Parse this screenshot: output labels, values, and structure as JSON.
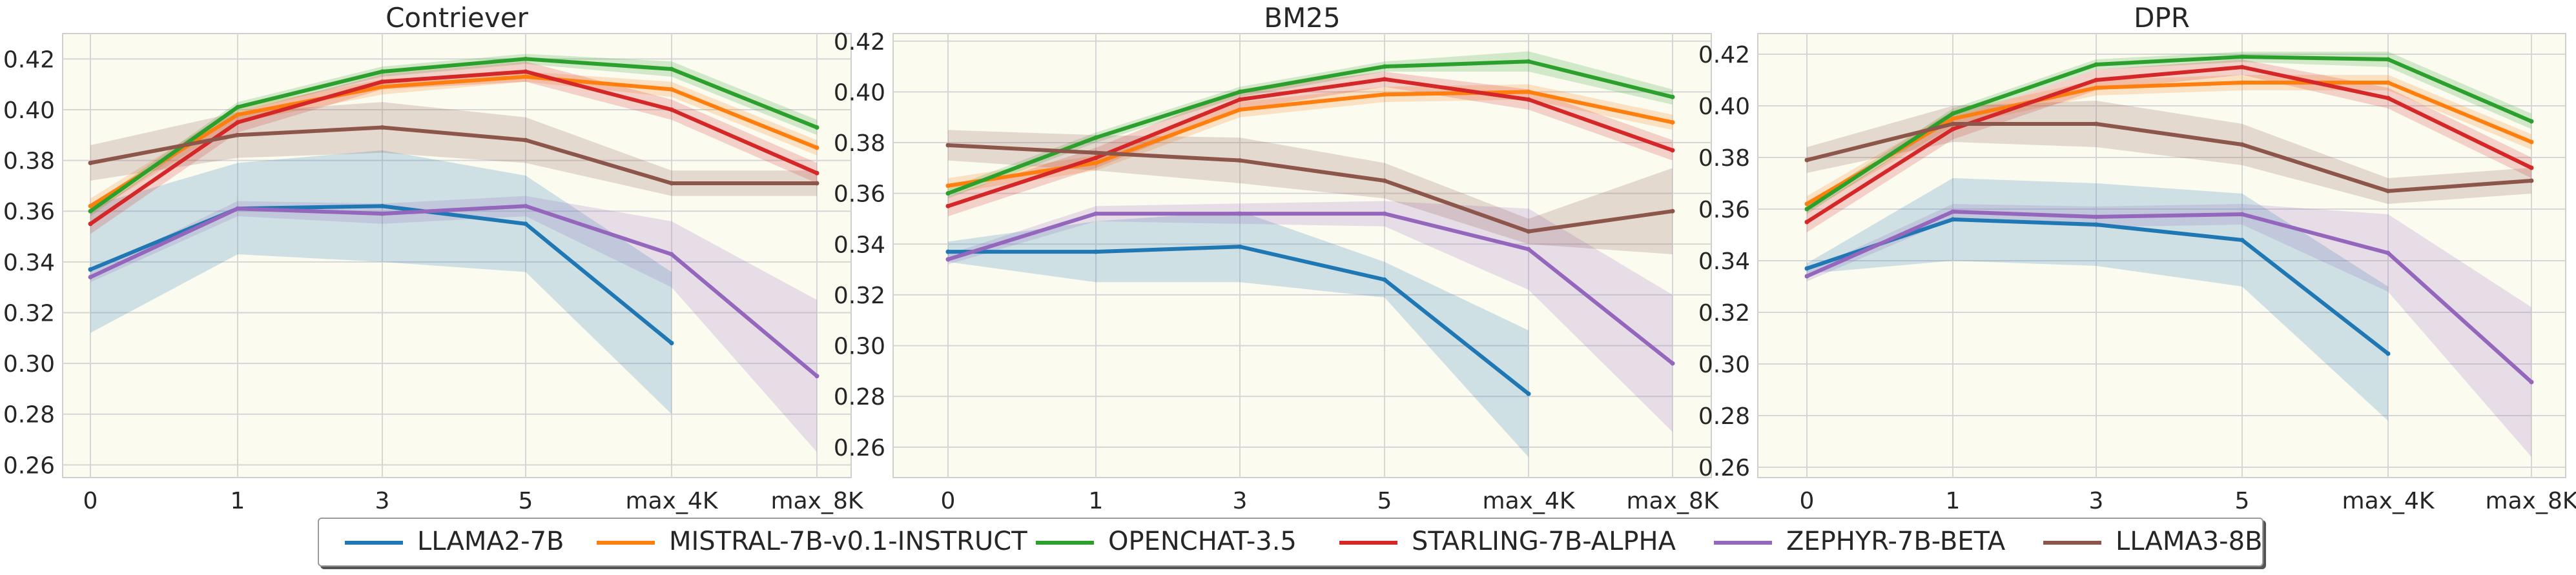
{
  "chart_data": [
    {
      "type": "line",
      "title": "Contriever",
      "categories": [
        "0",
        "1",
        "3",
        "5",
        "max_4K",
        "max_8K"
      ],
      "ylim": [
        0.255,
        0.43
      ],
      "yticks": [
        "0.26",
        "0.28",
        "0.30",
        "0.32",
        "0.34",
        "0.36",
        "0.38",
        "0.40",
        "0.42"
      ],
      "grid": true,
      "series": [
        {
          "name": "LLAMA2-7B",
          "values": [
            0.337,
            0.361,
            0.362,
            0.355,
            0.308,
            null
          ],
          "band": [
            0.025,
            0.018,
            0.022,
            0.019,
            0.028,
            null
          ]
        },
        {
          "name": "MISTRAL-7B-v0.1-INSTRUCT",
          "values": [
            0.362,
            0.398,
            0.409,
            0.413,
            0.408,
            0.385
          ],
          "band": [
            0.003,
            0.003,
            0.003,
            0.002,
            0.003,
            0.003
          ]
        },
        {
          "name": "OPENCHAT-3.5",
          "values": [
            0.36,
            0.401,
            0.415,
            0.42,
            0.416,
            0.393
          ],
          "band": [
            0.002,
            0.002,
            0.002,
            0.002,
            0.003,
            0.003
          ]
        },
        {
          "name": "STARLING-7B-ALPHA",
          "values": [
            0.355,
            0.395,
            0.411,
            0.415,
            0.4,
            0.375
          ],
          "band": [
            0.004,
            0.004,
            0.003,
            0.004,
            0.004,
            0.004
          ]
        },
        {
          "name": "ZEPHYR-7B-BETA",
          "values": [
            0.334,
            0.361,
            0.359,
            0.362,
            0.343,
            0.295
          ],
          "band": [
            0.002,
            0.003,
            0.004,
            0.004,
            0.013,
            0.03
          ]
        },
        {
          "name": "LLAMA3-8B",
          "values": [
            0.379,
            0.39,
            0.393,
            0.388,
            0.371,
            0.371
          ],
          "band": [
            0.007,
            0.009,
            0.01,
            0.009,
            0.005,
            0.005
          ]
        }
      ]
    },
    {
      "type": "line",
      "title": "BM25",
      "categories": [
        "0",
        "1",
        "3",
        "5",
        "max_4K",
        "max_8K"
      ],
      "ylim": [
        0.248,
        0.423
      ],
      "yticks": [
        "0.26",
        "0.28",
        "0.30",
        "0.32",
        "0.34",
        "0.36",
        "0.38",
        "0.40",
        "0.42"
      ],
      "grid": true,
      "series": [
        {
          "name": "LLAMA2-7B",
          "values": [
            0.337,
            0.337,
            0.339,
            0.326,
            0.281,
            null
          ],
          "band": [
            0.004,
            0.012,
            0.014,
            0.007,
            0.025,
            null
          ]
        },
        {
          "name": "MISTRAL-7B-v0.1-INSTRUCT",
          "values": [
            0.363,
            0.372,
            0.393,
            0.399,
            0.4,
            0.388
          ],
          "band": [
            0.003,
            0.003,
            0.003,
            0.003,
            0.003,
            0.003
          ]
        },
        {
          "name": "OPENCHAT-3.5",
          "values": [
            0.36,
            0.382,
            0.4,
            0.41,
            0.412,
            0.398
          ],
          "band": [
            0.002,
            0.002,
            0.002,
            0.002,
            0.004,
            0.003
          ]
        },
        {
          "name": "STARLING-7B-ALPHA",
          "values": [
            0.355,
            0.374,
            0.397,
            0.405,
            0.397,
            0.377
          ],
          "band": [
            0.004,
            0.004,
            0.004,
            0.003,
            0.004,
            0.004
          ]
        },
        {
          "name": "ZEPHYR-7B-BETA",
          "values": [
            0.334,
            0.352,
            0.352,
            0.352,
            0.338,
            0.293
          ],
          "band": [
            0.002,
            0.003,
            0.004,
            0.005,
            0.016,
            0.027
          ]
        },
        {
          "name": "LLAMA3-8B",
          "values": [
            0.379,
            0.376,
            0.373,
            0.365,
            0.345,
            0.353
          ],
          "band": [
            0.006,
            0.007,
            0.009,
            0.007,
            0.005,
            0.017
          ]
        }
      ]
    },
    {
      "type": "line",
      "title": "DPR",
      "categories": [
        "0",
        "1",
        "3",
        "5",
        "max_4K",
        "max_8K"
      ],
      "ylim": [
        0.256,
        0.428
      ],
      "yticks": [
        "0.26",
        "0.28",
        "0.30",
        "0.32",
        "0.34",
        "0.36",
        "0.38",
        "0.40",
        "0.42"
      ],
      "grid": true,
      "series": [
        {
          "name": "LLAMA2-7B",
          "values": [
            0.337,
            0.356,
            0.354,
            0.348,
            0.304,
            null
          ],
          "band": [
            0.002,
            0.016,
            0.016,
            0.018,
            0.026,
            null
          ]
        },
        {
          "name": "MISTRAL-7B-v0.1-INSTRUCT",
          "values": [
            0.362,
            0.395,
            0.407,
            0.409,
            0.409,
            0.386
          ],
          "band": [
            0.003,
            0.003,
            0.003,
            0.003,
            0.003,
            0.003
          ]
        },
        {
          "name": "OPENCHAT-3.5",
          "values": [
            0.36,
            0.397,
            0.416,
            0.419,
            0.418,
            0.394
          ],
          "band": [
            0.002,
            0.002,
            0.002,
            0.002,
            0.003,
            0.003
          ]
        },
        {
          "name": "STARLING-7B-ALPHA",
          "values": [
            0.355,
            0.391,
            0.41,
            0.415,
            0.403,
            0.376
          ],
          "band": [
            0.004,
            0.004,
            0.004,
            0.003,
            0.004,
            0.004
          ]
        },
        {
          "name": "ZEPHYR-7B-BETA",
          "values": [
            0.334,
            0.359,
            0.357,
            0.358,
            0.343,
            0.293
          ],
          "band": [
            0.002,
            0.003,
            0.004,
            0.004,
            0.015,
            0.029
          ]
        },
        {
          "name": "LLAMA3-8B",
          "values": [
            0.379,
            0.393,
            0.393,
            0.385,
            0.367,
            0.371
          ],
          "band": [
            0.005,
            0.007,
            0.009,
            0.008,
            0.005,
            0.005
          ]
        }
      ]
    }
  ],
  "legend": {
    "items": [
      {
        "label": "LLAMA2-7B",
        "color": "#1f77b4"
      },
      {
        "label": "MISTRAL-7B-v0.1-INSTRUCT",
        "color": "#ff7f0e"
      },
      {
        "label": "OPENCHAT-3.5",
        "color": "#2ca02c"
      },
      {
        "label": "STARLING-7B-ALPHA",
        "color": "#d62728"
      },
      {
        "label": "ZEPHYR-7B-BETA",
        "color": "#9467bd"
      },
      {
        "label": "LLAMA3-8B",
        "color": "#8c564b"
      }
    ]
  },
  "colors": {
    "plot_background": "#fbfbf0",
    "grid": "#d6d6d6",
    "axis_frame": "#cfcfcf",
    "text": "#262626"
  }
}
